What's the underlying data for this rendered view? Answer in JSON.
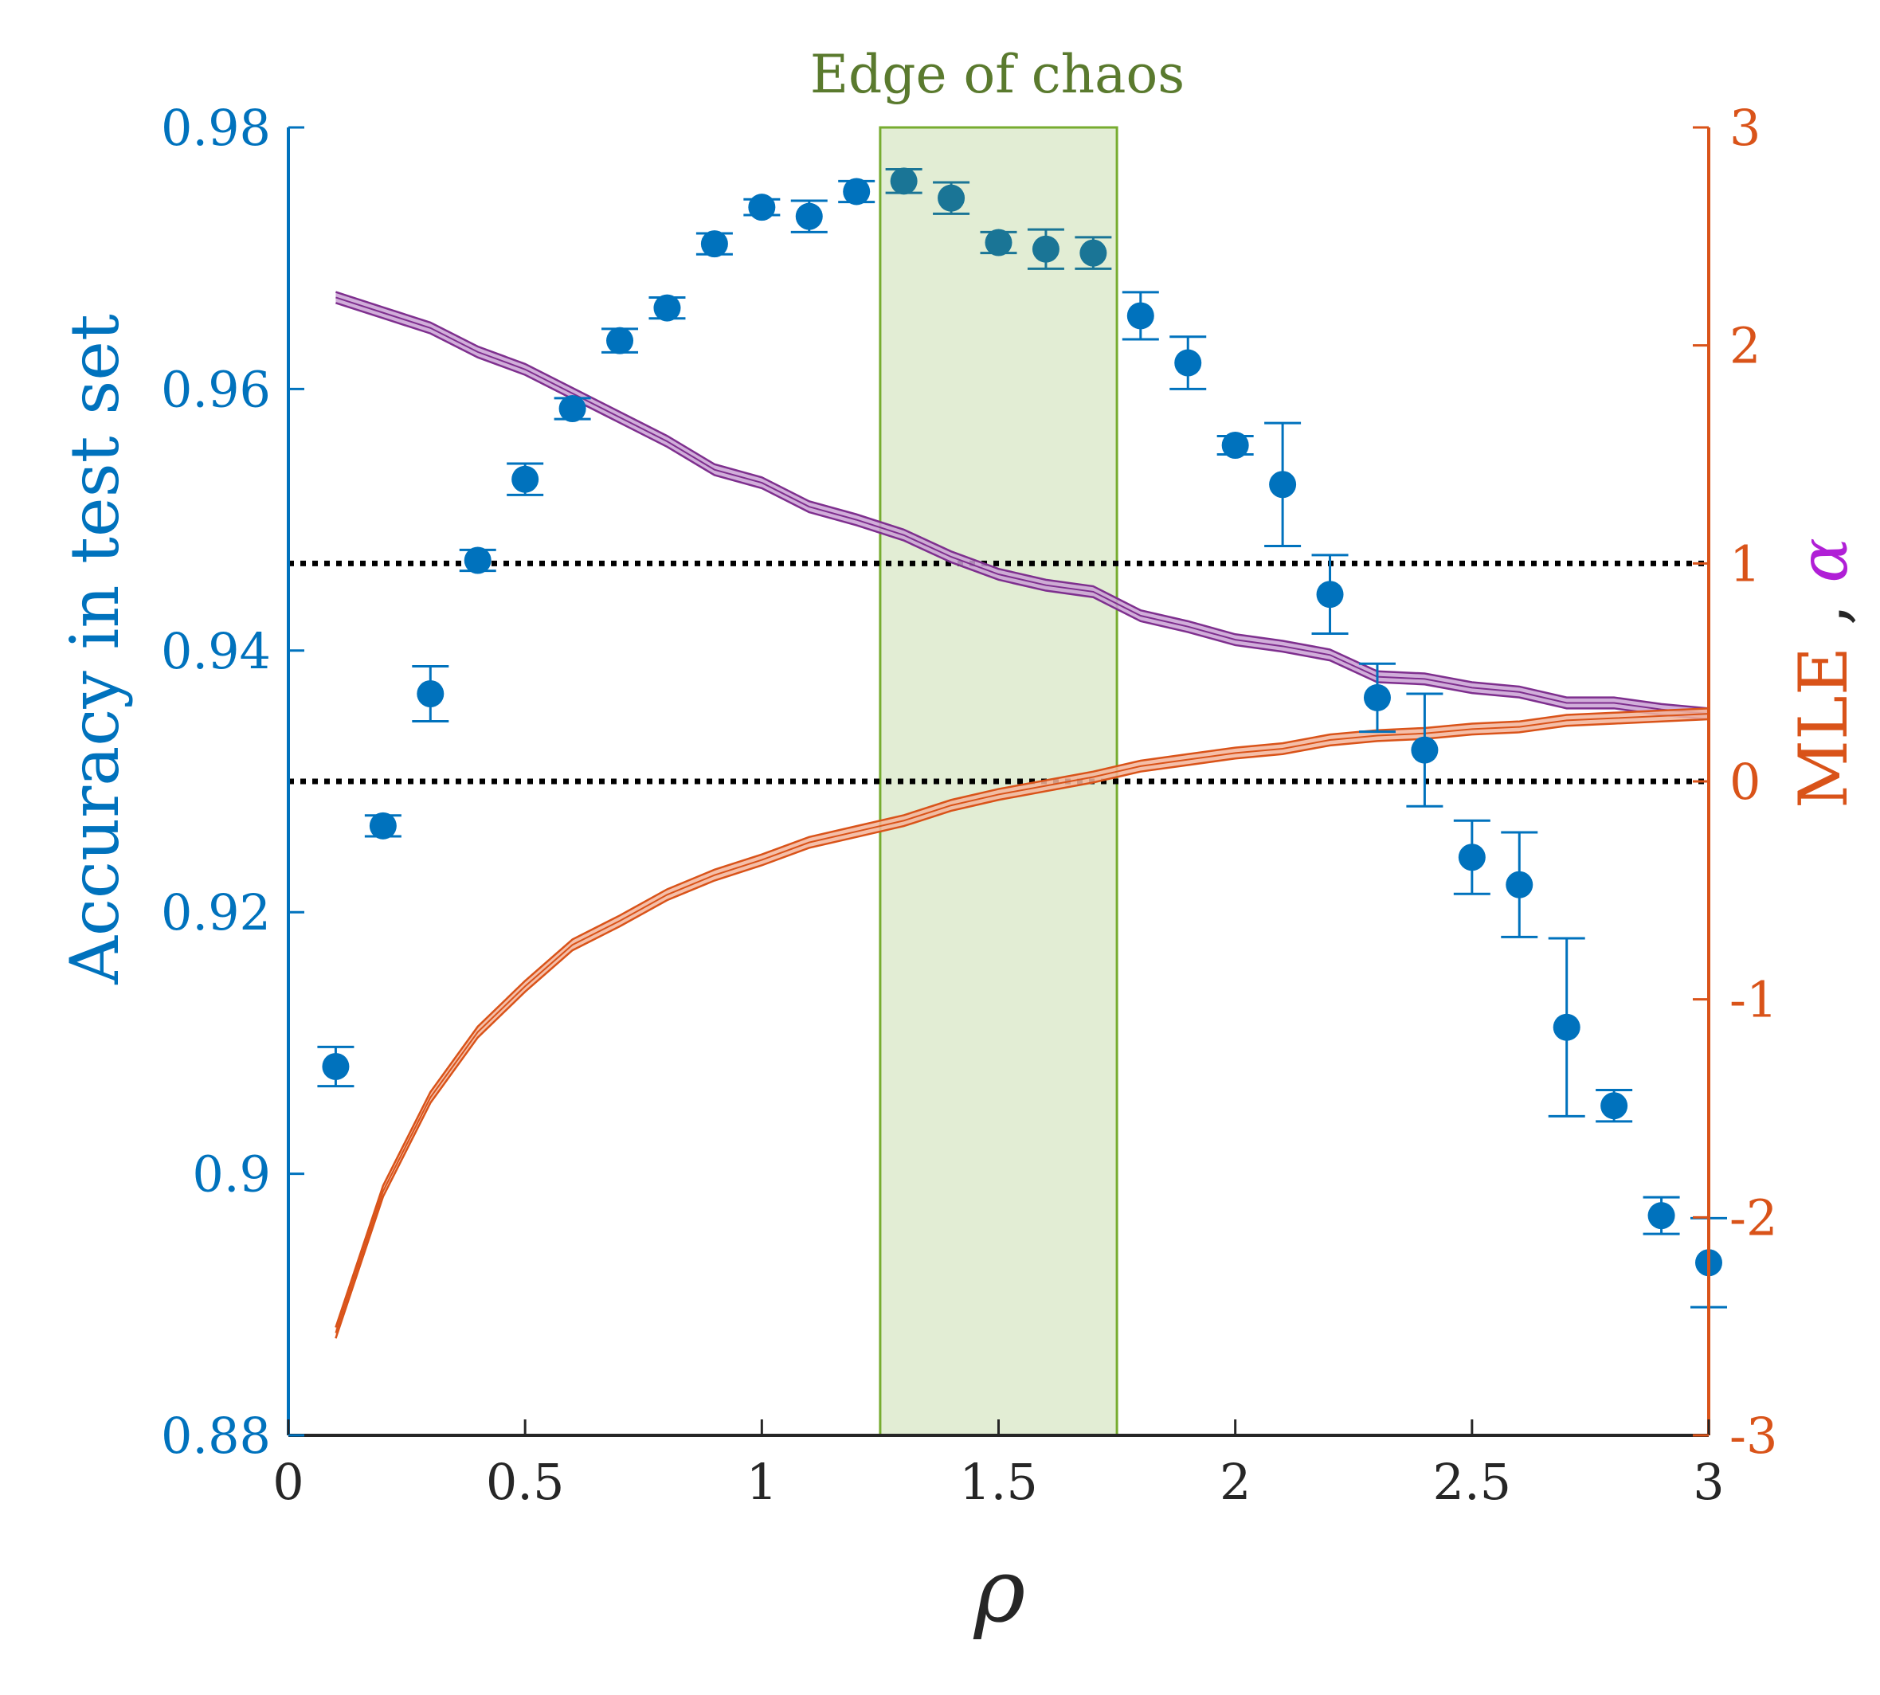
{
  "chart_data": {
    "type": "scatter",
    "band_label": "Edge of chaos",
    "band": [
      1.25,
      1.75
    ],
    "xlabel": "ρ",
    "ylabel_left": "Accuracy in test set",
    "ylabel_right_mle": "MLE",
    "ylabel_right_sep": " , ",
    "ylabel_right_alpha": "α",
    "xlim": [
      0,
      3
    ],
    "ylim_left": [
      0.88,
      0.98
    ],
    "ylim_right": [
      -3,
      3
    ],
    "x_ticks": [
      "0",
      "0.5",
      "1",
      "1.5",
      "2",
      "2.5",
      "3"
    ],
    "y_left_ticks": [
      "0.88",
      "0.9",
      "0.92",
      "0.94",
      "0.96",
      "0.98"
    ],
    "y_right_ticks": [
      "-3",
      "-2",
      "-1",
      "0",
      "1",
      "2",
      "3"
    ],
    "reference_lines_right_axis": [
      1,
      0
    ],
    "colors": {
      "accuracy": "#0072BD",
      "accuracy_in_band": "#1A7596",
      "mle": "#D95319",
      "mle_fill": "#F3B49A",
      "alpha": "#7E2F8E",
      "alpha_fill": "#C9A0D3",
      "band_fill": "#E2EDD4",
      "band_edge": "#77AC30",
      "band_label": "#5A7A2E",
      "axis_dark": "#262626"
    },
    "accuracy": {
      "x": [
        0.1,
        0.2,
        0.3,
        0.4,
        0.5,
        0.6,
        0.7,
        0.8,
        0.9,
        1.0,
        1.1,
        1.2,
        1.3,
        1.4,
        1.5,
        1.6,
        1.7,
        1.8,
        1.9,
        2.0,
        2.1,
        2.2,
        2.3,
        2.4,
        2.5,
        2.6,
        2.7,
        2.8,
        2.9,
        3.0
      ],
      "y": [
        0.9082,
        0.9266,
        0.9367,
        0.9469,
        0.9531,
        0.9585,
        0.9637,
        0.9662,
        0.9711,
        0.9739,
        0.9732,
        0.9751,
        0.9759,
        0.9746,
        0.9712,
        0.9707,
        0.9704,
        0.9656,
        0.962,
        0.9557,
        0.9527,
        0.9443,
        0.9364,
        0.9324,
        0.9242,
        0.9221,
        0.9112,
        0.9052,
        0.8968,
        0.8932
      ],
      "err": [
        0.0015,
        0.0008,
        0.0021,
        0.0008,
        0.0012,
        0.0008,
        0.0009,
        0.0008,
        0.0008,
        0.0006,
        0.0012,
        0.0008,
        0.0009,
        0.0012,
        0.0008,
        0.0015,
        0.0012,
        0.0018,
        0.002,
        0.0007,
        0.0047,
        0.003,
        0.0026,
        0.0043,
        0.0028,
        0.004,
        0.0068,
        0.0012,
        0.0014,
        0.0034
      ]
    },
    "alpha": {
      "x": [
        0.1,
        0.2,
        0.3,
        0.4,
        0.5,
        0.6,
        0.7,
        0.8,
        0.9,
        1.0,
        1.1,
        1.2,
        1.3,
        1.4,
        1.5,
        1.6,
        1.7,
        1.8,
        1.9,
        2.0,
        2.1,
        2.2,
        2.3,
        2.4,
        2.5,
        2.6,
        2.7,
        2.8,
        2.9,
        3.0
      ],
      "y": [
        2.22,
        2.15,
        2.08,
        1.97,
        1.89,
        1.78,
        1.67,
        1.56,
        1.43,
        1.37,
        1.26,
        1.2,
        1.13,
        1.03,
        0.95,
        0.9,
        0.87,
        0.76,
        0.71,
        0.65,
        0.62,
        0.58,
        0.48,
        0.47,
        0.43,
        0.41,
        0.36,
        0.36,
        0.33,
        0.31
      ],
      "band": 0.025
    },
    "mle": {
      "x": [
        0.1,
        0.2,
        0.3,
        0.4,
        0.5,
        0.6,
        0.7,
        0.8,
        0.9,
        1.0,
        1.1,
        1.2,
        1.3,
        1.4,
        1.5,
        1.6,
        1.7,
        1.8,
        1.9,
        2.0,
        2.1,
        2.2,
        2.3,
        2.4,
        2.5,
        2.6,
        2.7,
        2.8,
        2.9,
        3.0
      ],
      "y": [
        -2.53,
        -1.88,
        -1.45,
        -1.15,
        -0.94,
        -0.75,
        -0.64,
        -0.52,
        -0.43,
        -0.36,
        -0.28,
        -0.23,
        -0.18,
        -0.11,
        -0.06,
        -0.02,
        0.02,
        0.07,
        0.1,
        0.13,
        0.15,
        0.19,
        0.21,
        0.22,
        0.24,
        0.25,
        0.28,
        0.29,
        0.3,
        0.31
      ],
      "band": 0.025
    }
  }
}
